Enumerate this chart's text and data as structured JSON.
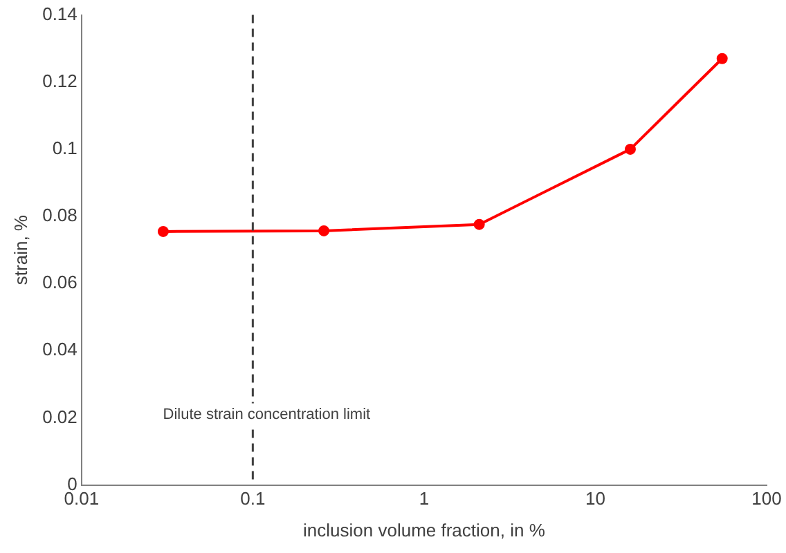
{
  "chart_data": {
    "type": "line",
    "xlabel": "inclusion volume fraction, in %",
    "ylabel": "strain, %",
    "log": "x",
    "x": [
      0.03,
      0.26,
      2.1,
      16,
      55
    ],
    "series": [
      {
        "color": "#ff0000",
        "values": [
          0.0755,
          0.0757,
          0.0776,
          0.1,
          0.127
        ]
      }
    ],
    "xlim": [
      0.01,
      100
    ],
    "xticks": [
      0.01,
      0.1,
      1,
      10,
      100
    ],
    "ylim": [
      0,
      0.14
    ],
    "yticks": [
      0,
      0.02,
      0.04,
      0.06,
      0.08,
      0.1,
      0.12,
      0.14
    ],
    "marker": "circle",
    "line_style": "solid",
    "grid": false,
    "legend": false,
    "ref_lines": [
      {
        "axis": "x",
        "value": 0.1,
        "label": "Dilute strain concentration limit",
        "color": "#404040",
        "line_style": "dashed"
      }
    ]
  }
}
